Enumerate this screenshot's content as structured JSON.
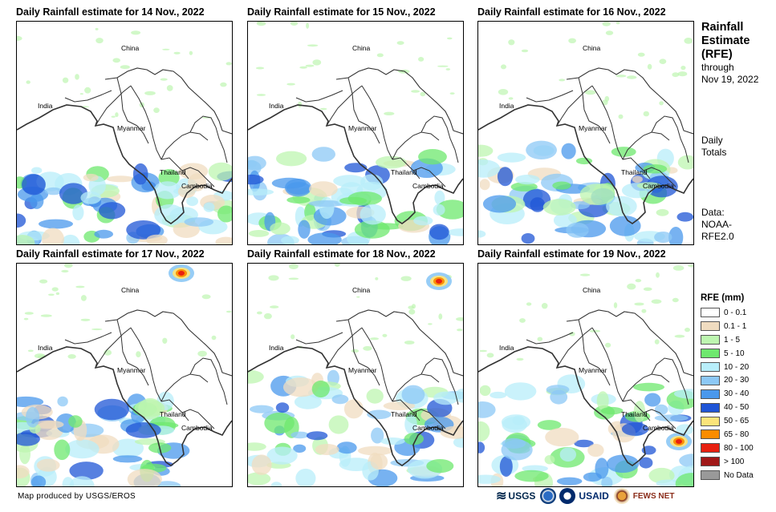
{
  "panels": [
    {
      "title": "Daily Rainfall estimate for 14 Nov., 2022",
      "day": 14
    },
    {
      "title": "Daily Rainfall estimate for 15 Nov., 2022",
      "day": 15
    },
    {
      "title": "Daily Rainfall estimate for 16 Nov., 2022",
      "day": 16
    },
    {
      "title": "Daily Rainfall estimate for 17 Nov., 2022",
      "day": 17
    },
    {
      "title": "Daily Rainfall estimate for 18 Nov., 2022",
      "day": 18
    },
    {
      "title": "Daily Rainfall estimate for 19 Nov., 2022",
      "day": 19
    }
  ],
  "places": {
    "china": "China",
    "india": "India",
    "myanmar": "Myanmar",
    "thailand": "Thailand",
    "cambodia": "Cambodia"
  },
  "sidebar": {
    "title_line1": "Rainfall",
    "title_line2": "Estimate",
    "title_line3": "(RFE)",
    "through": "through",
    "through_date": "Nov 19, 2022",
    "totals_line1": "Daily",
    "totals_line2": "Totals",
    "data_line1": "Data:",
    "data_line2": "NOAA-",
    "data_line3": "RFE2.0"
  },
  "legend": {
    "title": "RFE (mm)",
    "items": [
      {
        "label": "0 - 0.1",
        "color": "#ffffff"
      },
      {
        "label": "0.1 - 1",
        "color": "#f0dcc0"
      },
      {
        "label": "1 - 5",
        "color": "#bdf5b0"
      },
      {
        "label": "5 - 10",
        "color": "#6ee86e"
      },
      {
        "label": "10 - 20",
        "color": "#b8eefa"
      },
      {
        "label": "20 - 30",
        "color": "#8cc8f5"
      },
      {
        "label": "30 - 40",
        "color": "#4a98ec"
      },
      {
        "label": "40 - 50",
        "color": "#1f55d6"
      },
      {
        "label": "50 - 65",
        "color": "#fbe47a"
      },
      {
        "label": "65 - 80",
        "color": "#fb8c00"
      },
      {
        "label": "80 - 100",
        "color": "#e82010"
      },
      {
        "label": "> 100",
        "color": "#a01818"
      },
      {
        "label": "No Data",
        "color": "#999999"
      }
    ]
  },
  "credit": "Map produced by USGS/EROS",
  "logos": {
    "usgs": "USGS",
    "usaid": "USAID",
    "fewsnet": "FEWS NET"
  }
}
